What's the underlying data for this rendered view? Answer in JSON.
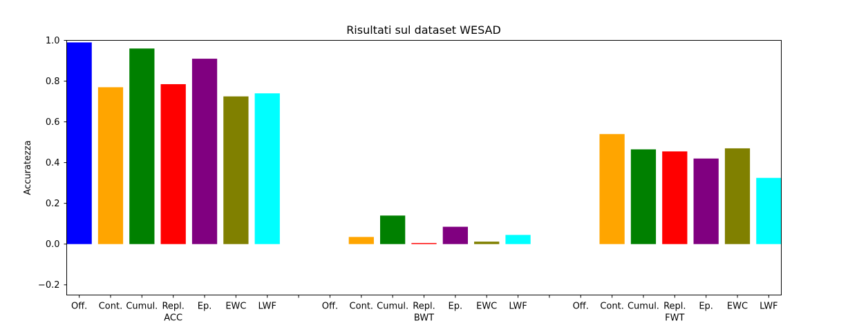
{
  "chart_data": {
    "type": "bar",
    "title": "Risultati sul dataset WESAD",
    "xlabel": "",
    "ylabel": "Accuratezza",
    "ylim": [
      -0.25,
      1.0
    ],
    "yticks": [
      "−0.2",
      "0.0",
      "0.2",
      "0.4",
      "0.6",
      "0.8",
      "1.0"
    ],
    "ytick_values": [
      -0.2,
      0.0,
      0.2,
      0.4,
      0.6,
      0.8,
      1.0
    ],
    "grid": false,
    "legend": "none",
    "groups": [
      {
        "label": "ACC",
        "bars": [
          {
            "label": "Off.",
            "value": 0.99,
            "color": "#0000ff"
          },
          {
            "label": "Cont.",
            "value": 0.77,
            "color": "#ffa500"
          },
          {
            "label": "Cumul.",
            "value": 0.96,
            "color": "#008000"
          },
          {
            "label": "Repl.",
            "value": 0.785,
            "color": "#ff0000"
          },
          {
            "label": "Ep.",
            "value": 0.91,
            "color": "#800080"
          },
          {
            "label": "EWC",
            "value": 0.725,
            "color": "#808000"
          },
          {
            "label": "LWF",
            "value": 0.74,
            "color": "#00ffff"
          }
        ]
      },
      {
        "label": "BWT",
        "bars": [
          {
            "label": "Off.",
            "value": 0.0,
            "color": "#0000ff"
          },
          {
            "label": "Cont.",
            "value": 0.035,
            "color": "#ffa500"
          },
          {
            "label": "Cumul.",
            "value": 0.14,
            "color": "#008000"
          },
          {
            "label": "Repl.",
            "value": 0.005,
            "color": "#ff0000"
          },
          {
            "label": "Ep.",
            "value": 0.085,
            "color": "#800080"
          },
          {
            "label": "EWC",
            "value": 0.012,
            "color": "#808000"
          },
          {
            "label": "LWF",
            "value": 0.045,
            "color": "#00ffff"
          }
        ]
      },
      {
        "label": "FWT",
        "bars": [
          {
            "label": "Off.",
            "value": 0.0,
            "color": "#0000ff"
          },
          {
            "label": "Cont.",
            "value": 0.54,
            "color": "#ffa500"
          },
          {
            "label": "Cumul.",
            "value": 0.465,
            "color": "#008000"
          },
          {
            "label": "Repl.",
            "value": 0.455,
            "color": "#ff0000"
          },
          {
            "label": "Ep.",
            "value": 0.42,
            "color": "#800080"
          },
          {
            "label": "EWC",
            "value": 0.47,
            "color": "#808000"
          },
          {
            "label": "LWF",
            "value": 0.325,
            "color": "#00ffff"
          }
        ]
      }
    ]
  }
}
